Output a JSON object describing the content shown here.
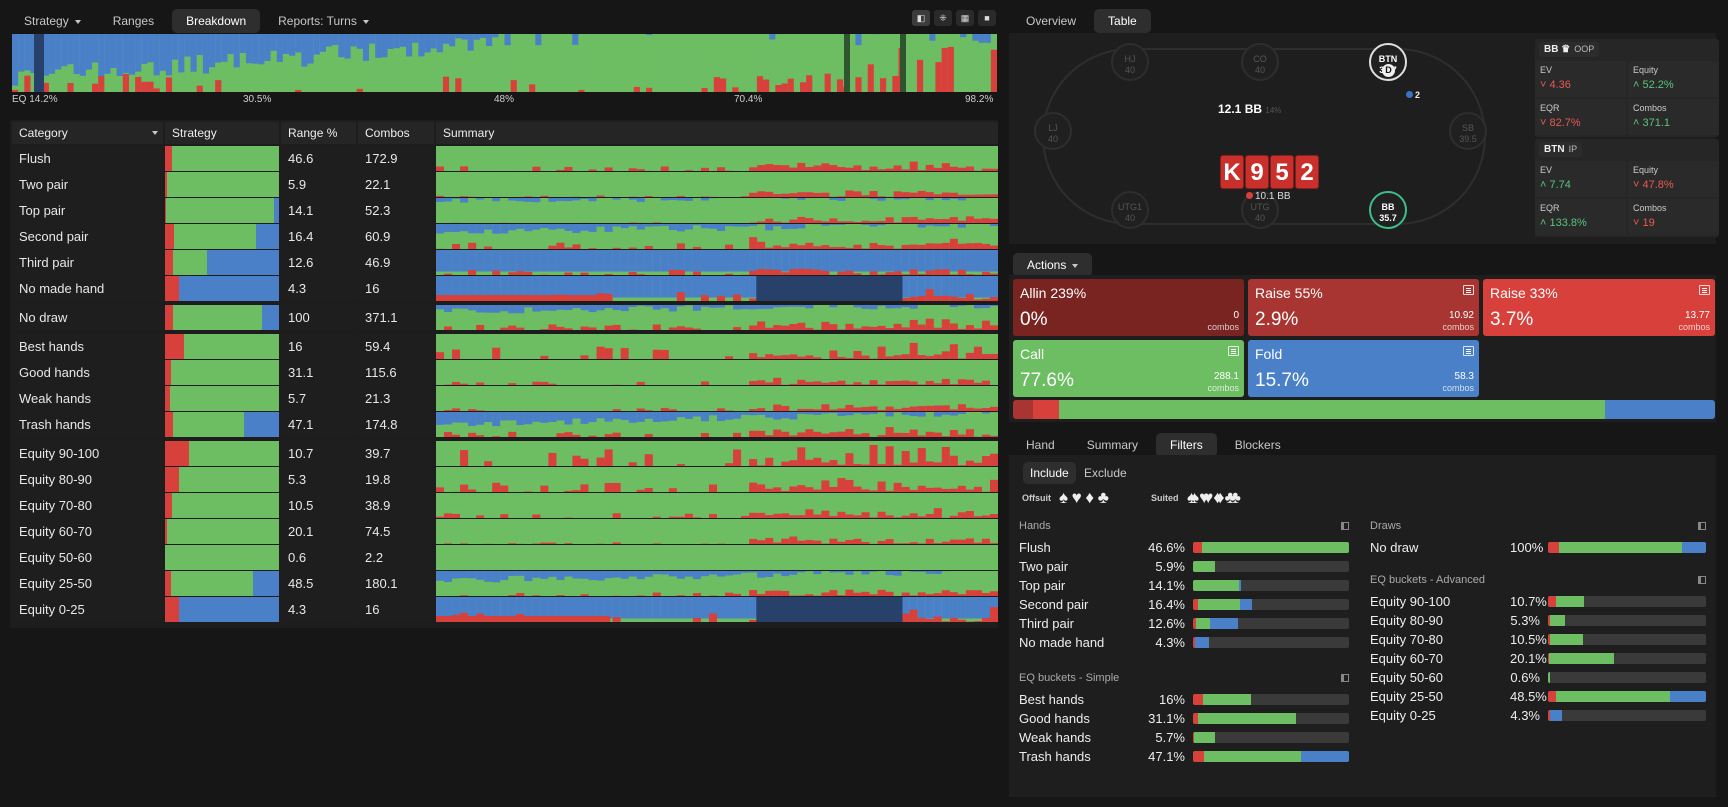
{
  "colors": {
    "red": "#d8403b",
    "green": "#6dbd63",
    "blue": "#4a80c8",
    "allin": "#7a2422",
    "raise55": "#a83531",
    "raise33": "#d8403b",
    "darkgreen": "#2f5530",
    "darkblue": "#27416a"
  },
  "toolbar": {
    "tabs": [
      {
        "label": "Strategy",
        "dropdown": true,
        "active": false
      },
      {
        "label": "Ranges",
        "dropdown": false,
        "active": false
      },
      {
        "label": "Breakdown",
        "dropdown": false,
        "active": true
      },
      {
        "label": "Reports: Turns",
        "dropdown": true,
        "active": false
      }
    ],
    "view_icons": [
      "contrast-icon",
      "cross-icon",
      "grid-icon",
      "square-icon"
    ]
  },
  "distribution": {
    "ticks": [
      "EQ 14.2%",
      "30.5%",
      "48%",
      "70.4%",
      "98.2%"
    ]
  },
  "breakdown_table": {
    "headers": {
      "category": "Category",
      "strategy": "Strategy",
      "range": "Range %",
      "combos": "Combos",
      "summary": "Summary"
    },
    "rows": [
      {
        "category": "Flush",
        "range": "46.6",
        "combos": "172.9",
        "red": 0.06,
        "green": 0.94,
        "blue": 0,
        "group": 0
      },
      {
        "category": "Two pair",
        "range": "5.9",
        "combos": "22.1",
        "red": 0.02,
        "green": 0.98,
        "blue": 0,
        "group": 0
      },
      {
        "category": "Top pair",
        "range": "14.1",
        "combos": "52.3",
        "red": 0.01,
        "green": 0.95,
        "blue": 0.04,
        "group": 0
      },
      {
        "category": "Second pair",
        "range": "16.4",
        "combos": "60.9",
        "red": 0.08,
        "green": 0.72,
        "blue": 0.2,
        "group": 0
      },
      {
        "category": "Third pair",
        "range": "12.6",
        "combos": "46.9",
        "red": 0.07,
        "green": 0.3,
        "blue": 0.63,
        "group": 0
      },
      {
        "category": "No made hand",
        "range": "4.3",
        "combos": "16",
        "red": 0.12,
        "green": 0,
        "blue": 0.88,
        "group": 0
      },
      {
        "category": "No draw",
        "range": "100",
        "combos": "371.1",
        "red": 0.07,
        "green": 0.78,
        "blue": 0.15,
        "group": 1
      },
      {
        "category": "Best hands",
        "range": "16",
        "combos": "59.4",
        "red": 0.17,
        "green": 0.83,
        "blue": 0,
        "group": 2
      },
      {
        "category": "Good hands",
        "range": "31.1",
        "combos": "115.6",
        "red": 0.05,
        "green": 0.95,
        "blue": 0,
        "group": 2
      },
      {
        "category": "Weak hands",
        "range": "5.7",
        "combos": "21.3",
        "red": 0.04,
        "green": 0.96,
        "blue": 0,
        "group": 2
      },
      {
        "category": "Trash hands",
        "range": "47.1",
        "combos": "174.8",
        "red": 0.07,
        "green": 0.62,
        "blue": 0.31,
        "group": 2
      },
      {
        "category": "Equity 90-100",
        "range": "10.7",
        "combos": "39.7",
        "red": 0.21,
        "green": 0.79,
        "blue": 0,
        "group": 3
      },
      {
        "category": "Equity 80-90",
        "range": "5.3",
        "combos": "19.8",
        "red": 0.12,
        "green": 0.88,
        "blue": 0,
        "group": 3
      },
      {
        "category": "Equity 70-80",
        "range": "10.5",
        "combos": "38.9",
        "red": 0.06,
        "green": 0.94,
        "blue": 0,
        "group": 3
      },
      {
        "category": "Equity 60-70",
        "range": "20.1",
        "combos": "74.5",
        "red": 0.02,
        "green": 0.98,
        "blue": 0,
        "group": 3
      },
      {
        "category": "Equity 50-60",
        "range": "0.6",
        "combos": "2.2",
        "red": 0,
        "green": 1,
        "blue": 0,
        "group": 3
      },
      {
        "category": "Equity 25-50",
        "range": "48.5",
        "combos": "180.1",
        "red": 0.05,
        "green": 0.72,
        "blue": 0.23,
        "group": 3
      },
      {
        "category": "Equity 0-25",
        "range": "4.3",
        "combos": "16",
        "red": 0.12,
        "green": 0,
        "blue": 0.88,
        "group": 3
      }
    ]
  },
  "right_tabs": [
    {
      "label": "Overview",
      "active": false
    },
    {
      "label": "Table",
      "active": true
    }
  ],
  "table_view": {
    "seats": [
      {
        "pos": "HJ",
        "stack": "40",
        "highlight": "none"
      },
      {
        "pos": "CO",
        "stack": "40",
        "highlight": "none"
      },
      {
        "pos": "BTN",
        "stack": "33.7",
        "highlight": "white"
      },
      {
        "pos": "LJ",
        "stack": "40",
        "highlight": "none"
      },
      {
        "pos": "SB",
        "stack": "39.5",
        "highlight": "none"
      },
      {
        "pos": "UTG1",
        "stack": "40",
        "highlight": "none"
      },
      {
        "pos": "UTG",
        "stack": "40",
        "highlight": "none"
      },
      {
        "pos": "BB",
        "stack": "35.7",
        "highlight": "green"
      }
    ],
    "dealer": "D",
    "btn_chips": "2",
    "pot": "12.1 BB",
    "pot_pct": "14%",
    "board": [
      "K",
      "9",
      "5",
      "2"
    ],
    "bet": "10.1 BB"
  },
  "players_stats": [
    {
      "name": "BB",
      "crown": "♛",
      "position": "OOP",
      "ev_label": "EV",
      "ev": "4.36",
      "ev_dir": "down",
      "equity_label": "Equity",
      "equity": "52.2%",
      "equity_dir": "up",
      "eqr_label": "EQR",
      "eqr": "82.7%",
      "eqr_dir": "down",
      "combos_label": "Combos",
      "combos": "371.1",
      "combos_dir": "up"
    },
    {
      "name": "BTN",
      "crown": "",
      "position": "IP",
      "ev_label": "EV",
      "ev": "7.74",
      "ev_dir": "up",
      "equity_label": "Equity",
      "equity": "47.8%",
      "equity_dir": "down",
      "eqr_label": "EQR",
      "eqr": "133.8%",
      "eqr_dir": "up",
      "combos_label": "Combos",
      "combos": "19",
      "combos_dir": "down"
    }
  ],
  "actions": {
    "dropdown_label": "Actions",
    "combos_unit": "combos",
    "items": [
      {
        "label": "Allin 239%",
        "pct": "0%",
        "combos": "0",
        "color": "#7a2422",
        "note": false
      },
      {
        "label": "Raise 55%",
        "pct": "2.9%",
        "combos": "10.92",
        "color": "#a83531",
        "note": true
      },
      {
        "label": "Raise 33%",
        "pct": "3.7%",
        "combos": "13.77",
        "color": "#d8403b",
        "note": true
      },
      {
        "label": "Call",
        "pct": "77.6%",
        "combos": "288.1",
        "color": "#6dbd63",
        "note": true
      },
      {
        "label": "Fold",
        "pct": "15.7%",
        "combos": "58.3",
        "color": "#4a80c8",
        "note": true
      }
    ],
    "frequency_bar": [
      0.0,
      0.029,
      0.037,
      0.776,
      0.157
    ]
  },
  "filter_tabs": [
    {
      "label": "Hand",
      "active": false
    },
    {
      "label": "Summary",
      "active": false
    },
    {
      "label": "Filters",
      "active": true
    },
    {
      "label": "Blockers",
      "active": false
    }
  ],
  "filters": {
    "include": "Include",
    "exclude": "Exclude",
    "offsuit_label": "Offsuit",
    "suited_label": "Suited",
    "offsuit_suits": [
      "♠",
      "♥",
      "♦",
      "♣"
    ],
    "suited_suits": [
      "♠♠",
      "♥♥",
      "♦♦",
      "♣♣"
    ],
    "sections": [
      {
        "title": "Hands",
        "rows": [
          {
            "label": "Flush",
            "pct": "46.6%",
            "r": 0.06,
            "g": 0.94,
            "b": 0,
            "fill": 1.0
          },
          {
            "label": "Two pair",
            "pct": "5.9%",
            "r": 0.02,
            "g": 0.98,
            "b": 0,
            "fill": 0.14
          },
          {
            "label": "Top pair",
            "pct": "14.1%",
            "r": 0.01,
            "g": 0.95,
            "b": 0.04,
            "fill": 0.31
          },
          {
            "label": "Second pair",
            "pct": "16.4%",
            "r": 0.08,
            "g": 0.72,
            "b": 0.2,
            "fill": 0.38
          },
          {
            "label": "Third pair",
            "pct": "12.6%",
            "r": 0.07,
            "g": 0.3,
            "b": 0.63,
            "fill": 0.29
          },
          {
            "label": "No made hand",
            "pct": "4.3%",
            "r": 0.12,
            "g": 0,
            "b": 0.88,
            "fill": 0.1
          }
        ]
      },
      {
        "title": "EQ buckets - Simple",
        "rows": [
          {
            "label": "Best hands",
            "pct": "16%",
            "r": 0.17,
            "g": 0.83,
            "b": 0,
            "fill": 0.37
          },
          {
            "label": "Good hands",
            "pct": "31.1%",
            "r": 0.05,
            "g": 0.95,
            "b": 0,
            "fill": 0.66
          },
          {
            "label": "Weak hands",
            "pct": "5.7%",
            "r": 0.04,
            "g": 0.96,
            "b": 0,
            "fill": 0.14
          },
          {
            "label": "Trash hands",
            "pct": "47.1%",
            "r": 0.07,
            "g": 0.62,
            "b": 0.31,
            "fill": 1.0
          }
        ]
      },
      {
        "title": "Draws",
        "rows": [
          {
            "label": "No draw",
            "pct": "100%",
            "r": 0.07,
            "g": 0.78,
            "b": 0.15,
            "fill": 1.0
          }
        ]
      },
      {
        "title": "EQ buckets - Advanced",
        "rows": [
          {
            "label": "Equity 90-100",
            "pct": "10.7%",
            "r": 0.21,
            "g": 0.79,
            "b": 0,
            "fill": 0.23
          },
          {
            "label": "Equity 80-90",
            "pct": "5.3%",
            "r": 0.12,
            "g": 0.88,
            "b": 0,
            "fill": 0.11
          },
          {
            "label": "Equity 70-80",
            "pct": "10.5%",
            "r": 0.06,
            "g": 0.94,
            "b": 0,
            "fill": 0.22
          },
          {
            "label": "Equity 60-70",
            "pct": "20.1%",
            "r": 0.02,
            "g": 0.98,
            "b": 0,
            "fill": 0.42
          },
          {
            "label": "Equity 50-60",
            "pct": "0.6%",
            "r": 0,
            "g": 1,
            "b": 0,
            "fill": 0.015
          },
          {
            "label": "Equity 25-50",
            "pct": "48.5%",
            "r": 0.05,
            "g": 0.72,
            "b": 0.23,
            "fill": 1.0
          },
          {
            "label": "Equity 0-25",
            "pct": "4.3%",
            "r": 0.12,
            "g": 0,
            "b": 0.88,
            "fill": 0.09
          }
        ]
      }
    ]
  }
}
